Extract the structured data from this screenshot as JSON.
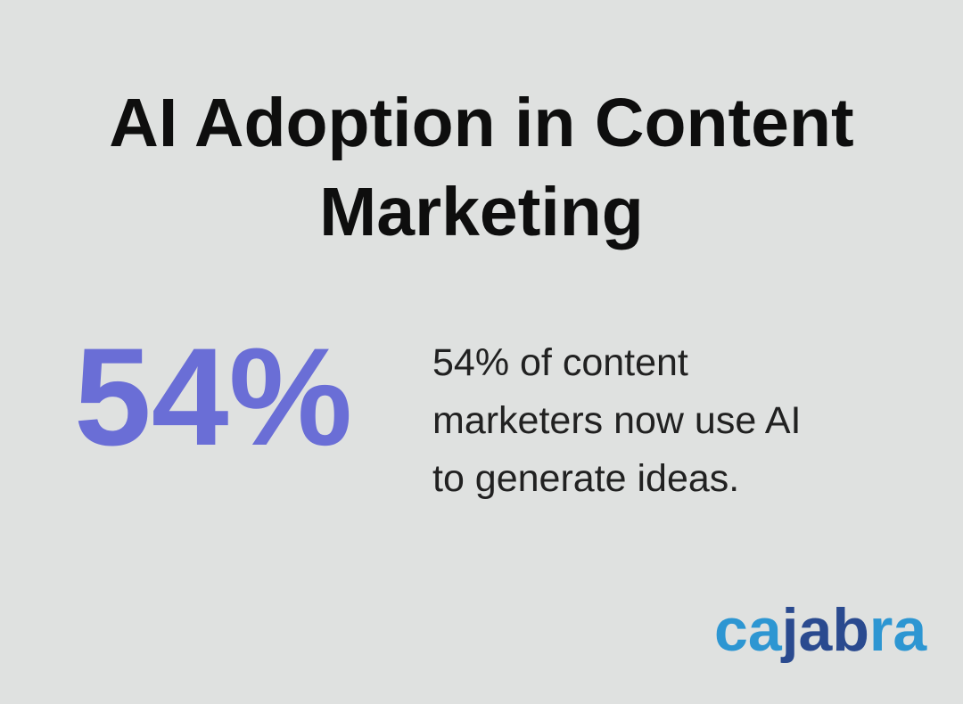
{
  "page": {
    "background_color": "#dfe1e0"
  },
  "title": {
    "text": "AI Adoption in Content Marketing",
    "color": "#0e0e0e"
  },
  "stat": {
    "value": "54%",
    "value_color": "#6a6ed6",
    "description": "54% of content marketers now use AI to generate ideas.",
    "description_color": "#212121",
    "description_lines": [
      "54% of content",
      "marketers now use AI",
      "to generate ideas."
    ]
  },
  "logo": {
    "brand": "cajabra",
    "light_blue": "#2d96d2",
    "dark_blue": "#2a4a8f",
    "segments": [
      {
        "text": "ca",
        "color": "#2d96d2"
      },
      {
        "text": "jab",
        "color": "#2a4a8f"
      },
      {
        "text": "ra",
        "color": "#2d96d2"
      }
    ]
  }
}
